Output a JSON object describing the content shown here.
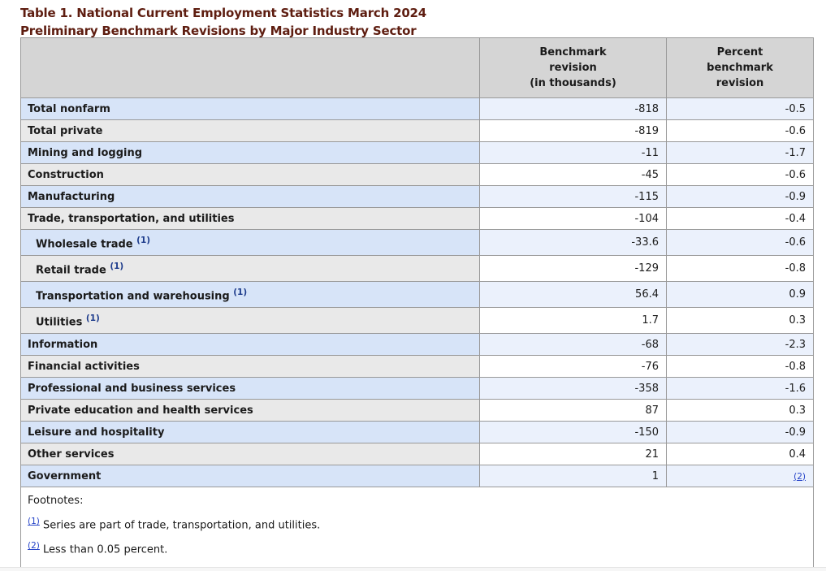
{
  "title": {
    "line1": "Table 1. National Current Employment Statistics March 2024",
    "line2": "Preliminary Benchmark Revisions by Major Industry Sector"
  },
  "table": {
    "header": {
      "industry": "",
      "benchmark": "Benchmark\nrevision\n(in thousands)",
      "percent": "Percent\nbenchmark\nrevision"
    },
    "rows": [
      {
        "label": "Total nonfarm",
        "indent": false,
        "footnote_ref": null,
        "benchmark": "-818",
        "percent": "-0.5"
      },
      {
        "label": "Total private",
        "indent": false,
        "footnote_ref": null,
        "benchmark": "-819",
        "percent": "-0.6"
      },
      {
        "label": "Mining and logging",
        "indent": false,
        "footnote_ref": null,
        "benchmark": "-11",
        "percent": "-1.7"
      },
      {
        "label": "Construction",
        "indent": false,
        "footnote_ref": null,
        "benchmark": "-45",
        "percent": "-0.6"
      },
      {
        "label": "Manufacturing",
        "indent": false,
        "footnote_ref": null,
        "benchmark": "-115",
        "percent": "-0.9"
      },
      {
        "label": "Trade, transportation, and utilities",
        "indent": false,
        "footnote_ref": null,
        "benchmark": "-104",
        "percent": "-0.4"
      },
      {
        "label": "Wholesale trade",
        "indent": true,
        "footnote_ref": "(1)",
        "benchmark": "-33.6",
        "percent": "-0.6"
      },
      {
        "label": "Retail trade",
        "indent": true,
        "footnote_ref": "(1)",
        "benchmark": "-129",
        "percent": "-0.8"
      },
      {
        "label": "Transportation and warehousing",
        "indent": true,
        "footnote_ref": "(1)",
        "benchmark": "56.4",
        "percent": "0.9"
      },
      {
        "label": "Utilities",
        "indent": true,
        "footnote_ref": "(1)",
        "benchmark": "1.7",
        "percent": "0.3"
      },
      {
        "label": "Information",
        "indent": false,
        "footnote_ref": null,
        "benchmark": "-68",
        "percent": "-2.3"
      },
      {
        "label": "Financial activities",
        "indent": false,
        "footnote_ref": null,
        "benchmark": "-76",
        "percent": "-0.8"
      },
      {
        "label": "Professional and business services",
        "indent": false,
        "footnote_ref": null,
        "benchmark": "-358",
        "percent": "-1.6"
      },
      {
        "label": "Private education and health services",
        "indent": false,
        "footnote_ref": null,
        "benchmark": "87",
        "percent": "0.3"
      },
      {
        "label": "Leisure and hospitality",
        "indent": false,
        "footnote_ref": null,
        "benchmark": "-150",
        "percent": "-0.9"
      },
      {
        "label": "Other services",
        "indent": false,
        "footnote_ref": null,
        "benchmark": "21",
        "percent": "0.4"
      },
      {
        "label": "Government",
        "indent": false,
        "footnote_ref": null,
        "benchmark": "1",
        "percent": "",
        "percent_link": "(2)"
      }
    ],
    "footnotes": {
      "heading": "Footnotes:",
      "items": [
        {
          "marker": "(1)",
          "text": "Series are part of trade, transportation, and utilities."
        },
        {
          "marker": "(2)",
          "text": "Less than 0.05 percent."
        }
      ]
    }
  },
  "colors": {
    "title_text": "#5e1d10",
    "header_bg": "#d5d5d5",
    "row_label_blue": "#d7e4f8",
    "row_label_gray": "#e9e9e9",
    "row_value_blue": "#ebf1fc",
    "row_value_white": "#ffffff",
    "border": "#999999",
    "label_link": "#1e3c8c",
    "footnote_link": "#2442c8"
  }
}
